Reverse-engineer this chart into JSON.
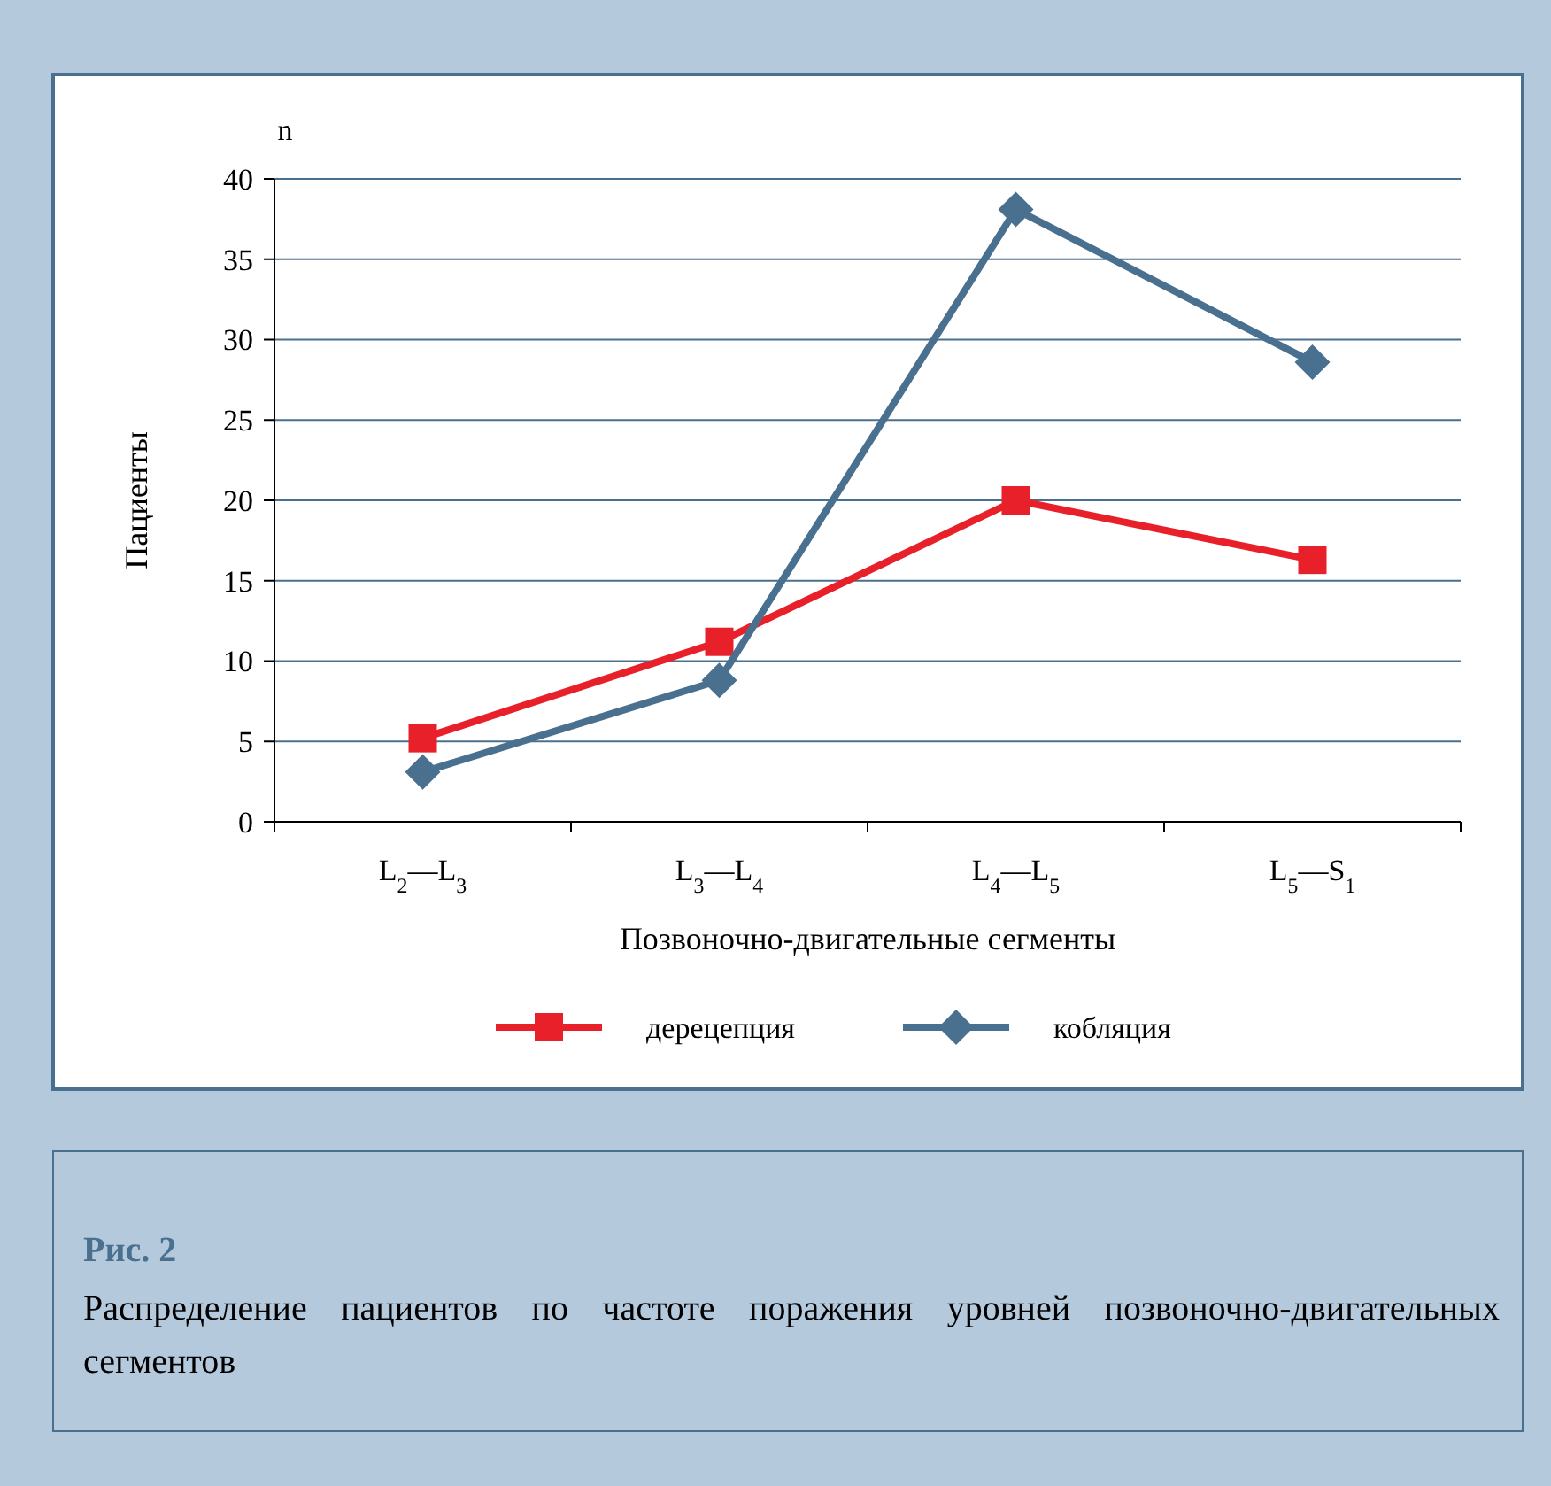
{
  "chart_data": {
    "type": "line",
    "title": "Рис. 2",
    "subtitle": "Распределение пациентов по частоте поражения уровней позвоночно-двигательных сегментов",
    "xlabel": "Позвоночно-двигательные сегменты",
    "ylabel": "Пациенты",
    "annotations": [
      "n"
    ],
    "categories": [
      "L$_{2}$—L$_{3}$",
      "L$_{3}$—L$_{4}$",
      "L$_{4}$—L$_{5}$",
      "L$_{5}$—S$_{1}$"
    ],
    "series": [
      {
        "name": "дерецепция",
        "color": "#e8202a",
        "marker": "square",
        "values": [
          5.2,
          11.2,
          20,
          16.3
        ]
      },
      {
        "name": "кобляция",
        "color": "#4a7090",
        "marker": "diamond",
        "values": [
          3.1,
          8.8,
          38.1,
          28.6
        ]
      }
    ],
    "ylim": [
      0,
      40
    ],
    "yticks": [
      0,
      5,
      10,
      15,
      20,
      25,
      30,
      35,
      40
    ],
    "grid": "y",
    "legend": "bottom",
    "line_style": "solid"
  }
}
